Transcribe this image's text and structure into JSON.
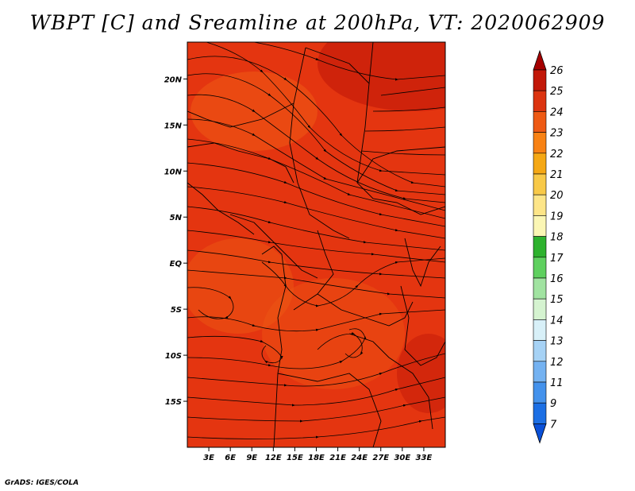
{
  "title": "WBPT [C] and Sreamline at 200hPa, VT: 2020062909",
  "credit": "GrADS: IGES/COLA",
  "map": {
    "lon_range": [
      0,
      36
    ],
    "lat_range": [
      -20,
      24
    ],
    "x_tick_labels": [
      "3E",
      "6E",
      "9E",
      "12E",
      "15E",
      "18E",
      "21E",
      "24E",
      "27E",
      "30E",
      "33E"
    ],
    "y_tick_labels": [
      "20N",
      "15N",
      "10N",
      "5N",
      "EQ",
      "5S",
      "10S",
      "15S"
    ],
    "fill_color": "#e43510",
    "warm_color": "#c81e0a",
    "cool_color": "#ee5a14"
  },
  "colorbar": {
    "labels": [
      "26",
      "25",
      "24",
      "23",
      "22",
      "21",
      "20",
      "19",
      "18",
      "17",
      "16",
      "15",
      "14",
      "13",
      "12",
      "11",
      "9",
      "7"
    ],
    "colors": [
      "#a50000",
      "#c21808",
      "#dc3410",
      "#ee5a14",
      "#f88214",
      "#f5a815",
      "#f8c948",
      "#fde588",
      "#fbf6b4",
      "#2eb22e",
      "#5fd05f",
      "#a1e3a1",
      "#d5f3d0",
      "#d8f0f8",
      "#a6d2f5",
      "#74b2f1",
      "#4492ec",
      "#1c6fe4",
      "#0a50d8"
    ]
  }
}
